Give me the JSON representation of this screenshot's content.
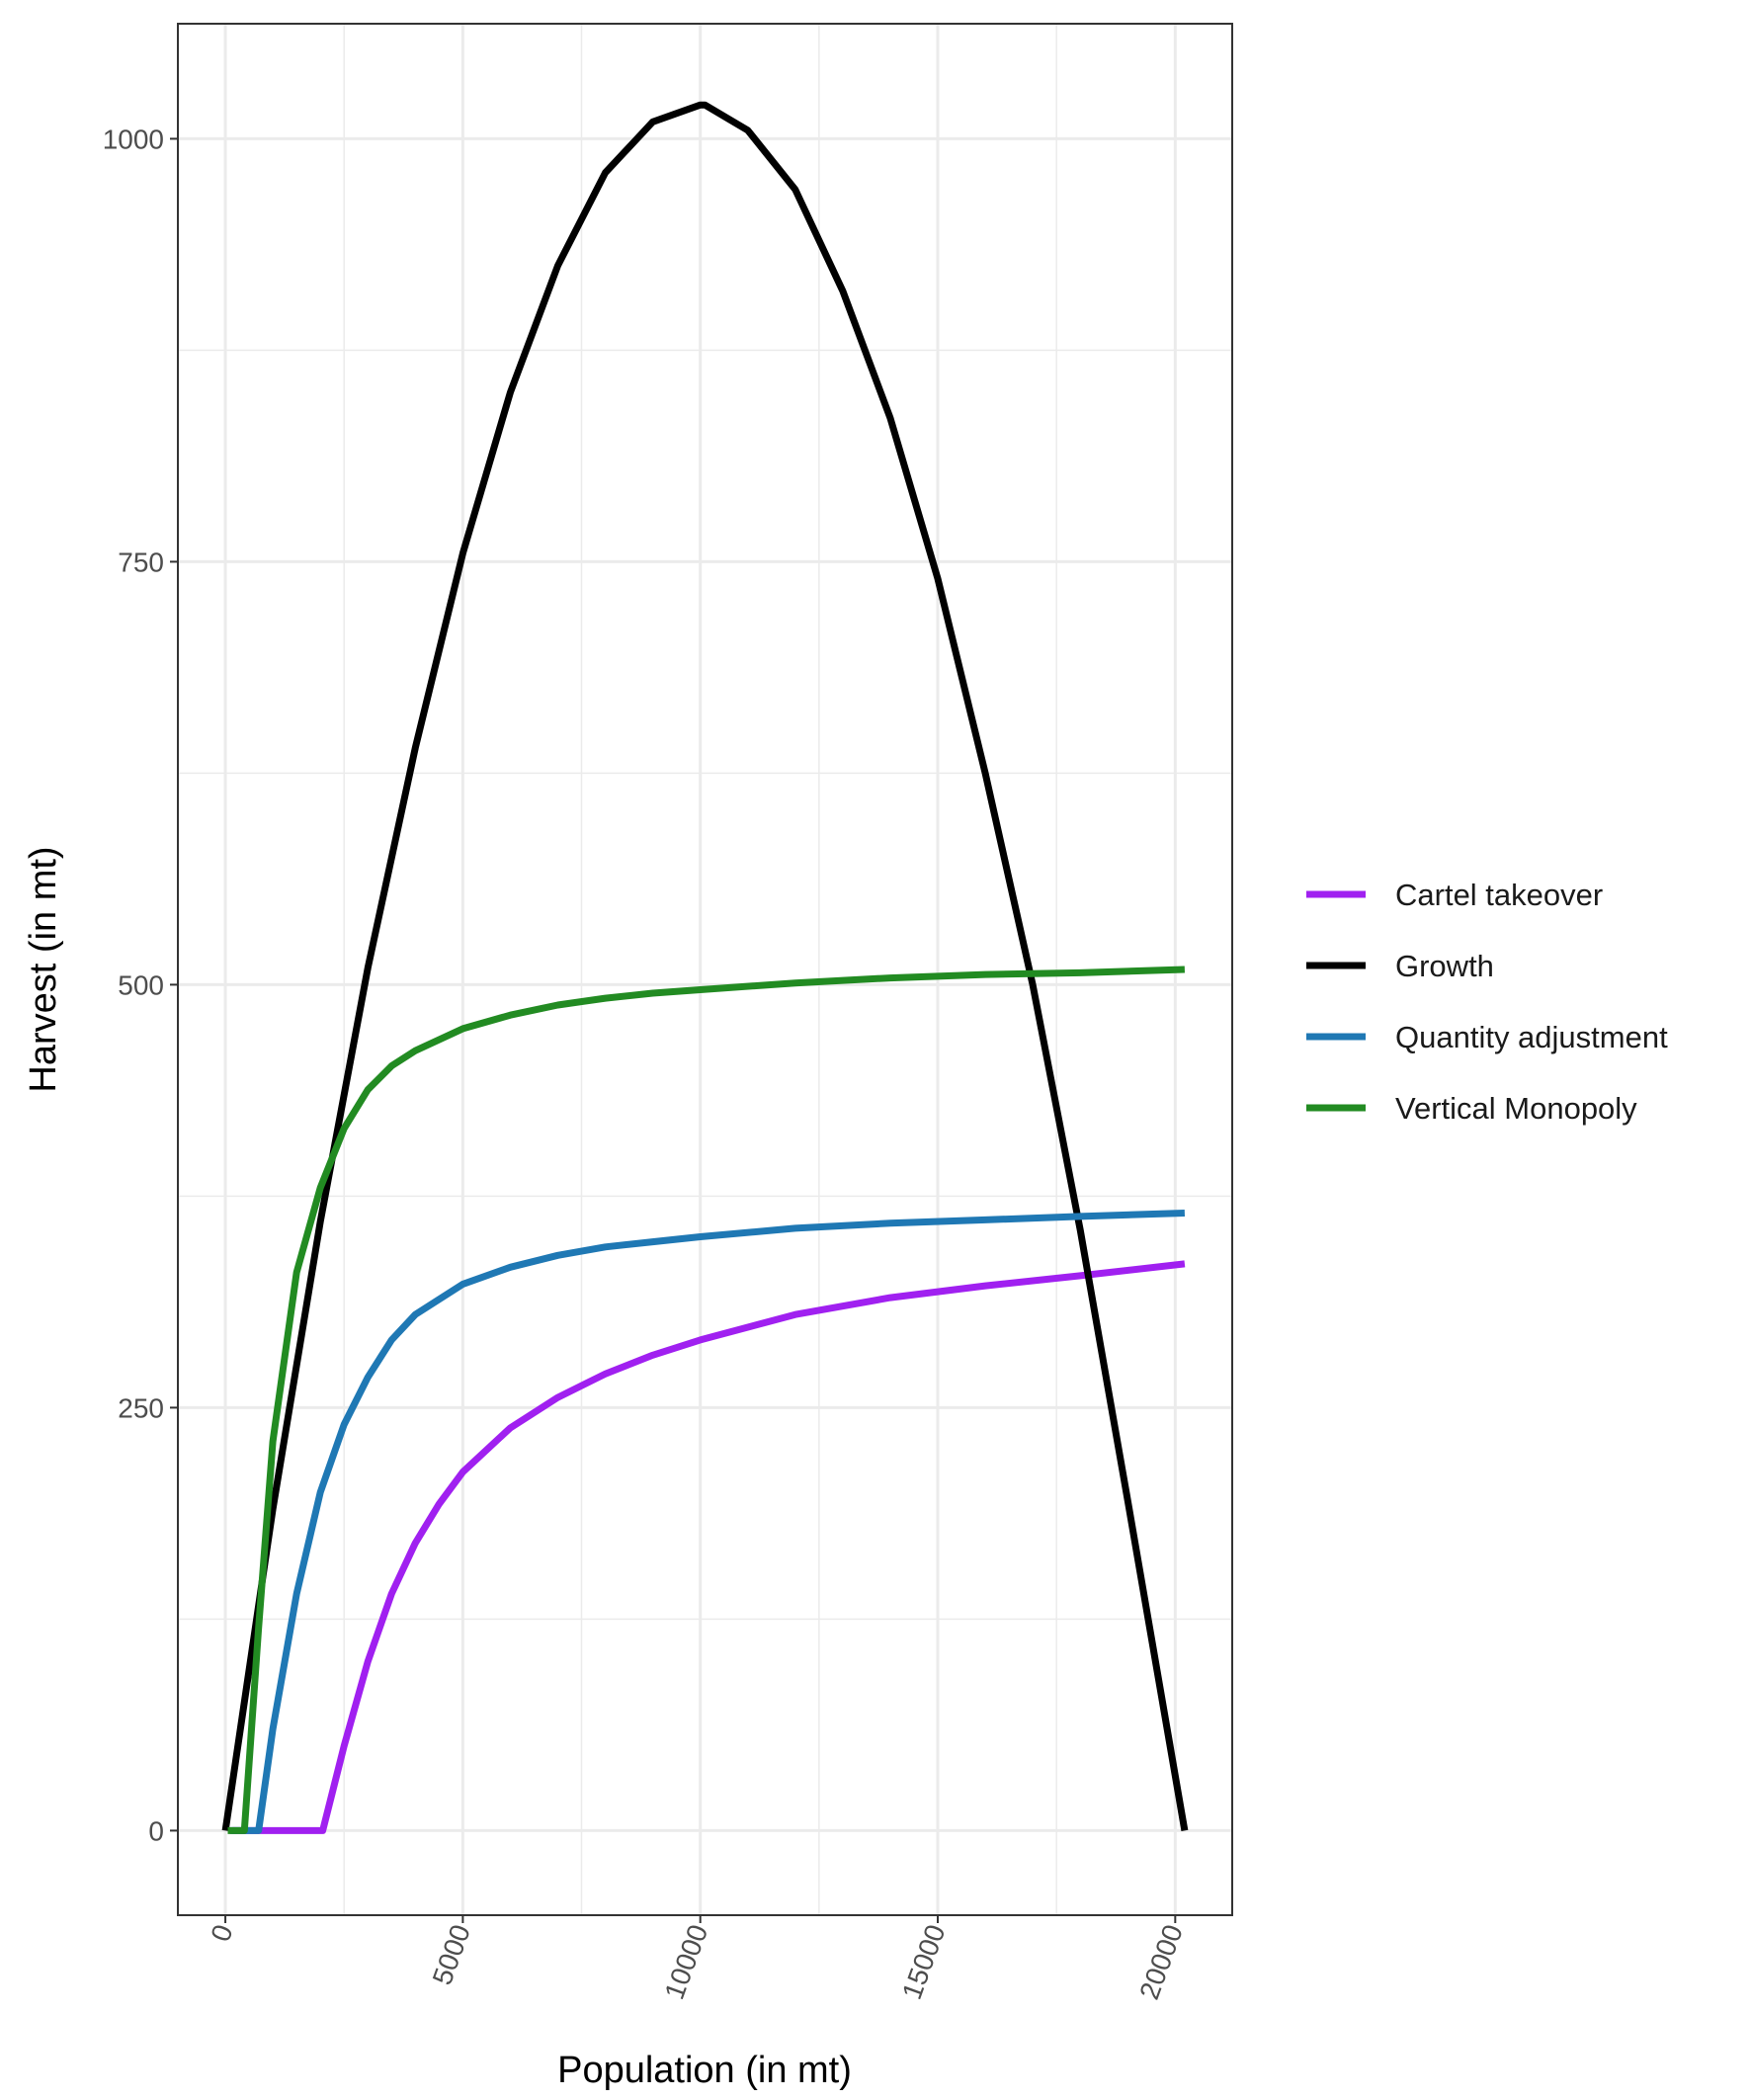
{
  "chart_data": {
    "type": "line",
    "title": "",
    "xlabel": "Population (in mt)",
    "ylabel": "Harvest (in mt)",
    "xlim": [
      -1000,
      21200
    ],
    "ylim": [
      -50,
      1068
    ],
    "x_ticks": [
      0,
      5000,
      10000,
      15000,
      20000
    ],
    "x_tick_labels": [
      "0",
      "5000",
      "10000",
      "15000",
      "20000"
    ],
    "x_minor_ticks": [
      2500,
      7500,
      12500,
      17500
    ],
    "y_ticks": [
      0,
      250,
      500,
      750,
      1000
    ],
    "y_tick_labels": [
      "0",
      "250",
      "500",
      "750",
      "1000"
    ],
    "y_minor_ticks": [
      125,
      375,
      625,
      875
    ],
    "grid": true,
    "legend_position": "right",
    "series": [
      {
        "name": "Cartel takeover",
        "color": "#a020f0",
        "x": [
          150,
          500,
          1000,
          1500,
          2050,
          2500,
          3000,
          3500,
          4000,
          4500,
          5000,
          6000,
          7000,
          8000,
          9000,
          10000,
          12000,
          14000,
          16000,
          18000,
          20200
        ],
        "y": [
          0,
          0,
          0,
          0,
          0,
          50,
          100,
          140,
          170,
          193,
          212,
          238,
          256,
          270,
          281,
          290,
          305,
          315,
          322,
          328,
          335
        ]
      },
      {
        "name": "Growth",
        "color": "#000000",
        "x": [
          0,
          1000,
          2000,
          3000,
          4000,
          5000,
          6000,
          7000,
          8000,
          9000,
          10000,
          10100,
          11000,
          12000,
          13000,
          14000,
          15000,
          16000,
          17000,
          18000,
          19000,
          20200
        ],
        "y": [
          0,
          190,
          360,
          510,
          640,
          755,
          850,
          925,
          980,
          1010,
          1020,
          1020,
          1005,
          970,
          910,
          835,
          740,
          625,
          500,
          355,
          195,
          0
        ]
      },
      {
        "name": "Quantity adjustment",
        "color": "#1f78b4",
        "x": [
          100,
          500,
          700,
          1000,
          1500,
          2000,
          2500,
          3000,
          3500,
          4000,
          5000,
          6000,
          7000,
          8000,
          9000,
          10000,
          12000,
          14000,
          16000,
          18000,
          20200
        ],
        "y": [
          0,
          0,
          0,
          60,
          140,
          200,
          240,
          268,
          290,
          305,
          323,
          333,
          340,
          345,
          348,
          351,
          356,
          359,
          361,
          363,
          365
        ]
      },
      {
        "name": "Vertical Monopoly",
        "color": "#228b22",
        "x": [
          50,
          300,
          400,
          700,
          1000,
          1500,
          2000,
          2500,
          3000,
          3500,
          4000,
          5000,
          6000,
          7000,
          8000,
          9000,
          10000,
          12000,
          14000,
          16000,
          18000,
          20200
        ],
        "y": [
          0,
          0,
          0,
          120,
          230,
          330,
          380,
          415,
          438,
          452,
          461,
          474,
          482,
          488,
          492,
          495,
          497,
          501,
          504,
          506,
          507,
          509
        ]
      }
    ]
  }
}
